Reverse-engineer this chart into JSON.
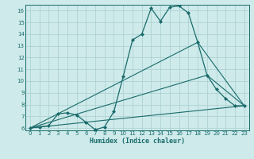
{
  "xlabel": "Humidex (Indice chaleur)",
  "bg_color": "#ceeaea",
  "grid_color": "#aacece",
  "line_color": "#1a6b6b",
  "xlim": [
    -0.5,
    23.5
  ],
  "ylim": [
    5.8,
    16.5
  ],
  "yticks": [
    6,
    7,
    8,
    9,
    10,
    11,
    12,
    13,
    14,
    15,
    16
  ],
  "xticks": [
    0,
    1,
    2,
    3,
    4,
    5,
    6,
    7,
    8,
    9,
    10,
    11,
    12,
    13,
    14,
    15,
    16,
    17,
    18,
    19,
    20,
    21,
    22,
    23
  ],
  "lines": [
    {
      "x": [
        0,
        1,
        2,
        3,
        4,
        5,
        6,
        7,
        8,
        9,
        10,
        11,
        12,
        13,
        14,
        15,
        16,
        17,
        18,
        19,
        20,
        21,
        22,
        23
      ],
      "y": [
        6.0,
        6.1,
        6.2,
        7.2,
        7.3,
        7.1,
        6.5,
        5.85,
        6.1,
        7.4,
        10.4,
        13.5,
        14.0,
        16.2,
        15.1,
        16.3,
        16.4,
        15.8,
        13.3,
        10.5,
        9.3,
        8.5,
        7.9,
        7.9
      ],
      "marker": "D",
      "markersize": 2.0,
      "lw": 0.9
    },
    {
      "x": [
        0,
        23
      ],
      "y": [
        6.0,
        7.9
      ],
      "marker": null,
      "markersize": 0,
      "lw": 0.8
    },
    {
      "x": [
        0,
        19,
        23
      ],
      "y": [
        6.0,
        10.5,
        7.9
      ],
      "marker": null,
      "markersize": 0,
      "lw": 0.8
    },
    {
      "x": [
        0,
        18,
        23
      ],
      "y": [
        6.0,
        13.3,
        7.9
      ],
      "marker": null,
      "markersize": 0,
      "lw": 0.8
    }
  ]
}
